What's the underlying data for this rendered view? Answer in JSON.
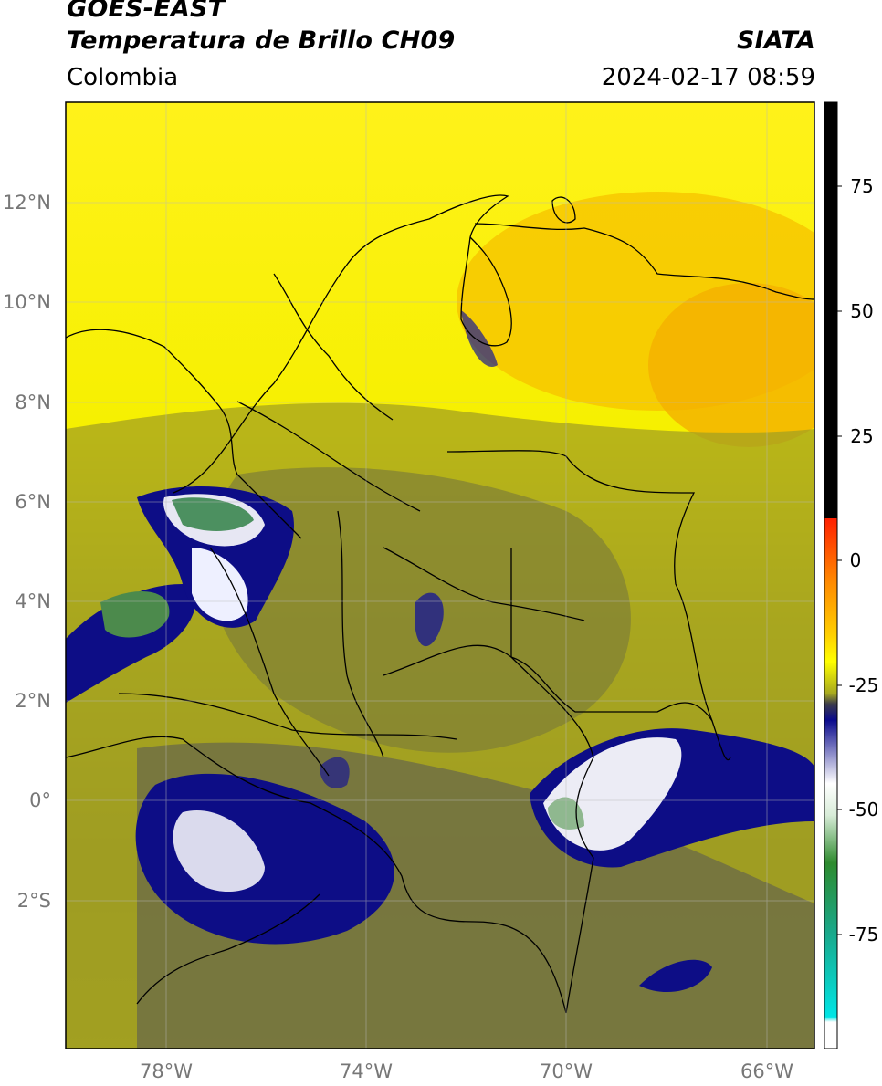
{
  "header": {
    "satellite": "GOES-EAST",
    "product": "Temperatura de Brillo CH09",
    "region": "Colombia",
    "agency": "SIATA",
    "datetime": "2024-02-17 08:59"
  },
  "axes": {
    "lat_labels": [
      "12°N",
      "10°N",
      "8°N",
      "6°N",
      "4°N",
      "2°N",
      "0°",
      "2°S"
    ],
    "lon_labels": [
      "78°W",
      "74°W",
      "70°W",
      "66°W"
    ]
  },
  "colorbar": {
    "ticks": [
      "75",
      "50",
      "25",
      "0",
      "-25",
      "-50",
      "-75"
    ],
    "colors": [
      "#000000",
      "#ff2000",
      "#ff9c00",
      "#ffff00",
      "#a7a91e",
      "#3c3c4a",
      "#0a0a8c",
      "#ffffff",
      "#2e8b2e",
      "#00e5e5"
    ]
  }
}
